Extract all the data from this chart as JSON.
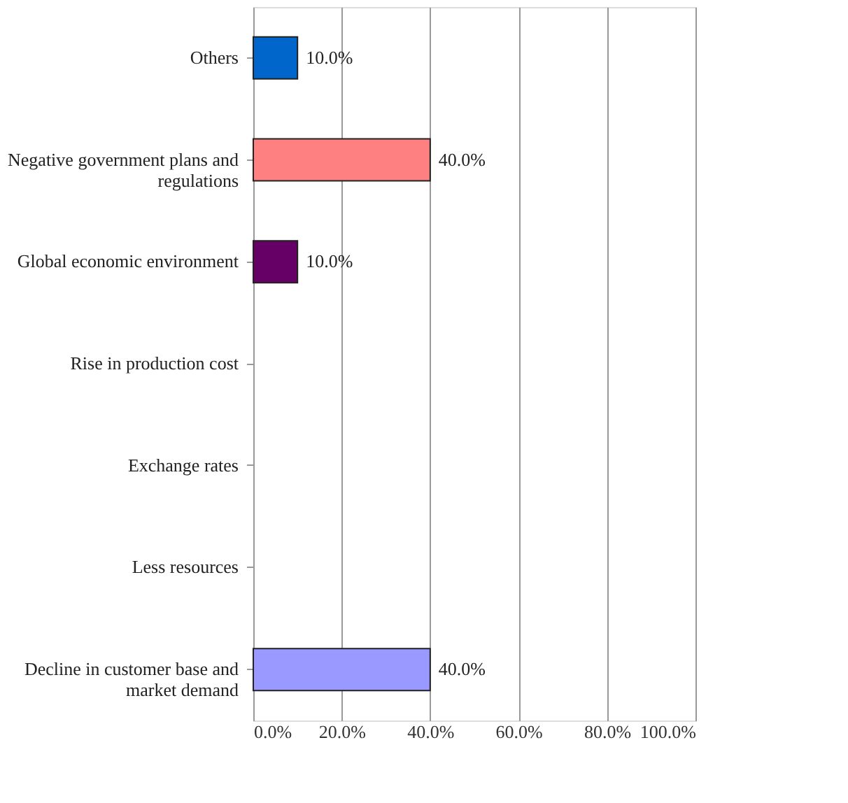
{
  "chart_data": {
    "type": "bar",
    "orientation": "horizontal",
    "categories": [
      "Others",
      "Negative government plans and regulations",
      "Global economic environment",
      "Rise in production cost",
      "Exchange rates",
      "Less resources",
      "Decline in customer base and market demand"
    ],
    "values": [
      10,
      40,
      10,
      null,
      null,
      null,
      40
    ],
    "colors": [
      "#0066cc",
      "#ff8080",
      "#660066",
      "#cccccc",
      "#cccccc",
      "#cccccc",
      "#9999ff"
    ],
    "value_labels": [
      "10.0%",
      "40.0%",
      "10.0%",
      null,
      null,
      null,
      "40.0%"
    ],
    "xlim": [
      0,
      100
    ],
    "xticks": [
      {
        "value": 0,
        "label": "0.0%"
      },
      {
        "value": 20,
        "label": "20.0%"
      },
      {
        "value": 40,
        "label": "40.0%"
      },
      {
        "value": 60,
        "label": "60.0%"
      },
      {
        "value": 80,
        "label": "80.0%"
      },
      {
        "value": 100,
        "label": "100.0%"
      }
    ],
    "grid": "x"
  }
}
